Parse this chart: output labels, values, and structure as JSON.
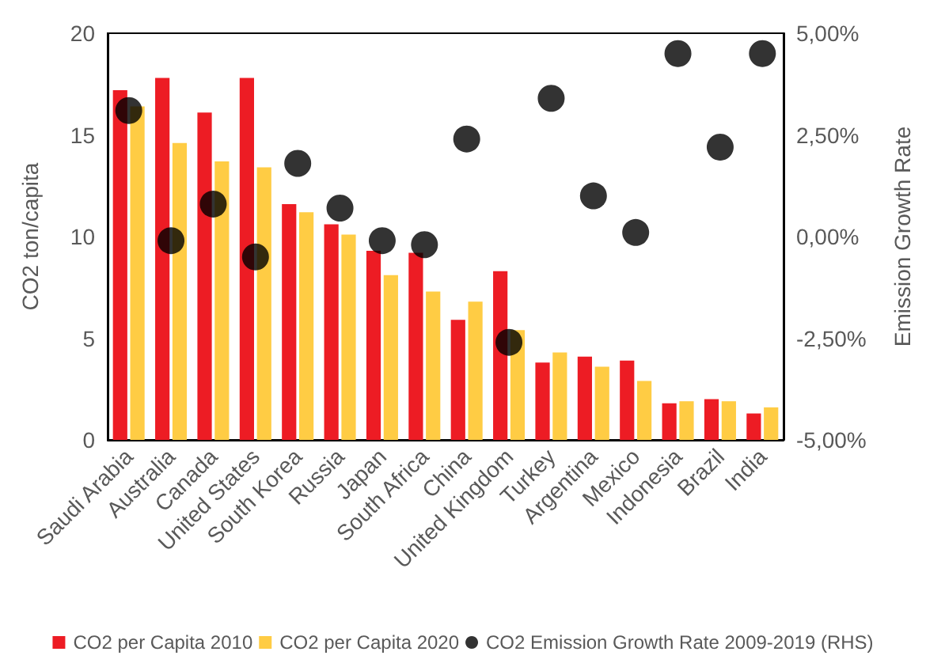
{
  "chart_data": {
    "type": "bar",
    "ylabel": "CO2 ton/capita",
    "y2label": "Emission Growth Rate",
    "categories": [
      "Saudi Arabia",
      "Australia",
      "Canada",
      "United States",
      "South Korea",
      "Russia",
      "Japan",
      "South Africa",
      "China",
      "United Kingdom",
      "Turkey",
      "Argentina",
      "Mexico",
      "Indonesia",
      "Brazil",
      "India"
    ],
    "series": [
      {
        "name": "CO2 per Capita 2010",
        "color": "#ed1c24",
        "values": [
          17.2,
          17.8,
          16.1,
          17.8,
          11.6,
          10.6,
          9.3,
          9.2,
          5.9,
          8.3,
          3.8,
          4.1,
          3.9,
          1.8,
          2.0,
          1.3
        ]
      },
      {
        "name": "CO2 per Capita 2020",
        "color": "#ffcc44",
        "values": [
          16.4,
          14.6,
          13.7,
          13.4,
          11.2,
          10.1,
          8.1,
          7.3,
          6.8,
          5.4,
          4.3,
          3.6,
          2.9,
          1.9,
          1.9,
          1.6
        ]
      },
      {
        "name": "CO2 Emission Growth Rate 2009-2019 (RHS)",
        "color": "#000000",
        "type": "scatter",
        "axis": "y2",
        "marker": "circle",
        "values": [
          3.1,
          -0.1,
          0.8,
          -0.5,
          1.8,
          0.7,
          -0.1,
          -0.2,
          2.4,
          -2.6,
          3.4,
          1.0,
          0.1,
          4.5,
          2.2,
          4.5
        ]
      }
    ],
    "ylim": [
      0,
      20
    ],
    "yticks": [
      0,
      5,
      10,
      15,
      20
    ],
    "y2lim": [
      -5,
      5
    ],
    "y2ticks": [
      {
        "value": -5,
        "label": "-5,00%"
      },
      {
        "value": -2.5,
        "label": "-2,50%"
      },
      {
        "value": 0,
        "label": "0,00%"
      },
      {
        "value": 2.5,
        "label": "2,50%"
      },
      {
        "value": 5,
        "label": "5,00%"
      }
    ],
    "legend": "bottom",
    "grid": false
  }
}
